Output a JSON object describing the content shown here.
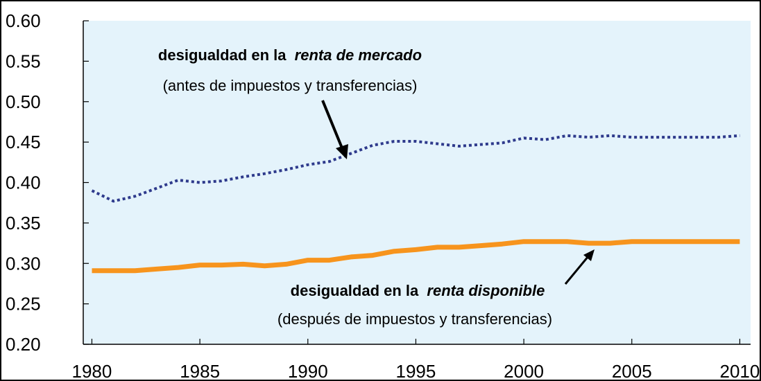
{
  "chart_data": {
    "type": "line",
    "x": [
      1980,
      1981,
      1982,
      1983,
      1984,
      1985,
      1986,
      1987,
      1988,
      1989,
      1990,
      1991,
      1992,
      1993,
      1994,
      1995,
      1996,
      1997,
      1998,
      1999,
      2000,
      2001,
      2002,
      2003,
      2004,
      2005,
      2006,
      2007,
      2008,
      2009,
      2010
    ],
    "series": [
      {
        "name": "desigualdad en la renta de mercado",
        "color": "#2e3a8c",
        "style": "dotted",
        "values": [
          0.39,
          0.377,
          0.383,
          0.393,
          0.403,
          0.4,
          0.402,
          0.407,
          0.411,
          0.416,
          0.422,
          0.426,
          0.436,
          0.446,
          0.451,
          0.451,
          0.448,
          0.445,
          0.447,
          0.449,
          0.455,
          0.453,
          0.458,
          0.456,
          0.458,
          0.456,
          0.456,
          0.456,
          0.456,
          0.456,
          0.458
        ]
      },
      {
        "name": "desigualdad en la renta disponible",
        "color": "#f7941d",
        "style": "solid",
        "values": [
          0.291,
          0.291,
          0.291,
          0.293,
          0.295,
          0.298,
          0.298,
          0.299,
          0.297,
          0.299,
          0.304,
          0.304,
          0.308,
          0.31,
          0.315,
          0.317,
          0.32,
          0.32,
          0.322,
          0.324,
          0.327,
          0.327,
          0.327,
          0.325,
          0.325,
          0.327,
          0.327,
          0.327,
          0.327,
          0.327,
          0.327
        ]
      }
    ],
    "xlim": [
      1979.6,
      2010.5
    ],
    "xticks": [
      1980,
      1985,
      1990,
      1995,
      2000,
      2005,
      2010
    ],
    "ylim": [
      0.2,
      0.6
    ],
    "yticks": [
      {
        "value": 0.2,
        "label": "0.20"
      },
      {
        "value": 0.25,
        "label": "0.25"
      },
      {
        "value": 0.3,
        "label": "0.30"
      },
      {
        "value": 0.35,
        "label": "0.35"
      },
      {
        "value": 0.4,
        "label": "0.40"
      },
      {
        "value": 0.45,
        "label": "0.45"
      },
      {
        "value": 0.5,
        "label": "0.50"
      },
      {
        "value": 0.55,
        "label": "0.55"
      },
      {
        "value": 0.6,
        "label": "0.60"
      }
    ],
    "annotations": [
      {
        "bold": "desigualdad en la",
        "italic": "renta de mercado",
        "note": "(antes de impuestos y transferencias)"
      },
      {
        "bold": "desigualdad en la",
        "italic": "renta disponible",
        "note": "(después de impuestos y transferencias)"
      }
    ]
  }
}
